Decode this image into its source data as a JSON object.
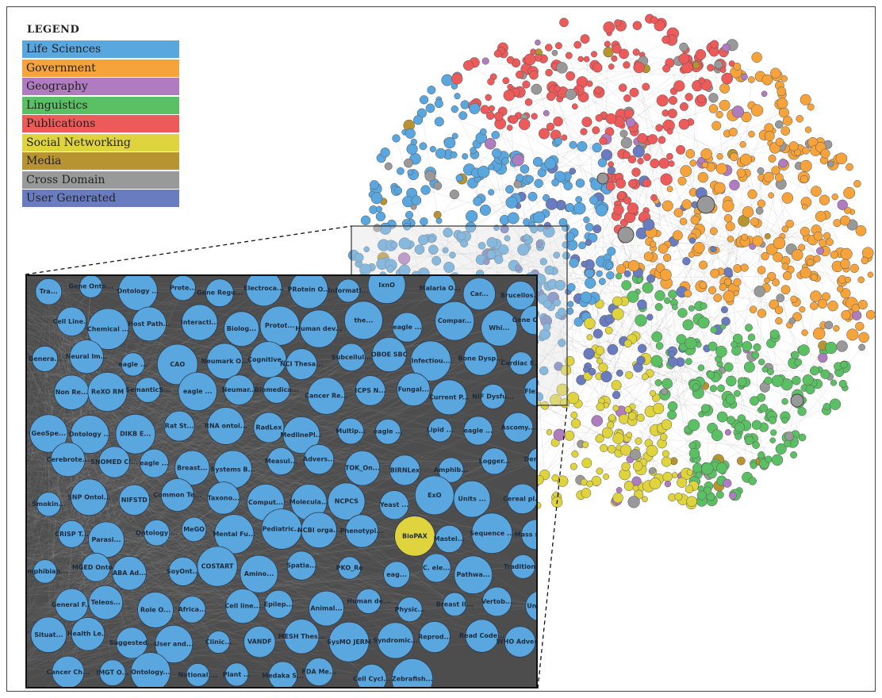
{
  "legend": {
    "title": "LEGEND",
    "items": [
      {
        "label": "Life Sciences",
        "color": "#5aa6df"
      },
      {
        "label": "Government",
        "color": "#f5a33a"
      },
      {
        "label": "Geography",
        "color": "#b07cc0"
      },
      {
        "label": "Linguistics",
        "color": "#5bbf63"
      },
      {
        "label": "Publications",
        "color": "#ec5a5a"
      },
      {
        "label": "Social Networking",
        "color": "#dfd43e"
      },
      {
        "label": "Media",
        "color": "#b89431"
      },
      {
        "label": "Cross Domain",
        "color": "#999999"
      },
      {
        "label": "User Generated",
        "color": "#6a7cc0"
      }
    ]
  },
  "zoom_nodes": [
    {
      "label": "Tra...",
      "category": "Life Sciences"
    },
    {
      "label": "Gene Onto...",
      "category": "Life Sciences"
    },
    {
      "label": "Ontology ...",
      "category": "Life Sciences"
    },
    {
      "label": "Prote...",
      "category": "Life Sciences"
    },
    {
      "label": "Gene Regu...",
      "category": "Life Sciences"
    },
    {
      "label": "Electroca...",
      "category": "Life Sciences"
    },
    {
      "label": "PRotein O...",
      "category": "Life Sciences"
    },
    {
      "label": "Informati...",
      "category": "Life Sciences"
    },
    {
      "label": "IxnO",
      "category": "Life Sciences"
    },
    {
      "label": "Malaria O...",
      "category": "Life Sciences"
    },
    {
      "label": "Car...",
      "category": "Life Sciences"
    },
    {
      "label": "Brucellos...",
      "category": "Life Sciences"
    },
    {
      "label": "Cell Line...",
      "category": "Life Sciences"
    },
    {
      "label": "Chemical ...",
      "category": "Life Sciences"
    },
    {
      "label": "Host Path...",
      "category": "Life Sciences"
    },
    {
      "label": "Interacti...",
      "category": "Life Sciences"
    },
    {
      "label": "Biolog...",
      "category": "Life Sciences"
    },
    {
      "label": "Protot...",
      "category": "Life Sciences"
    },
    {
      "label": "Human dev...",
      "category": "Life Sciences"
    },
    {
      "label": "the...",
      "category": "Life Sciences"
    },
    {
      "label": "eagle ...",
      "category": "Life Sciences"
    },
    {
      "label": "Compar...",
      "category": "Life Sciences"
    },
    {
      "label": "Whi...",
      "category": "Life Sciences"
    },
    {
      "label": "Gene Onto...",
      "category": "Life Sciences"
    },
    {
      "label": "Genera...",
      "category": "Life Sciences"
    },
    {
      "label": "Neural Im...",
      "category": "Life Sciences"
    },
    {
      "label": "eagle ...",
      "category": "Life Sciences"
    },
    {
      "label": "CAO",
      "category": "Life Sciences"
    },
    {
      "label": "Neumark O...",
      "category": "Life Sciences"
    },
    {
      "label": "Cognitive...",
      "category": "Life Sciences"
    },
    {
      "label": "NCI Thesa...",
      "category": "Life Sciences"
    },
    {
      "label": "Subcellul...",
      "category": "Life Sciences"
    },
    {
      "label": "OBOE SBC",
      "category": "Life Sciences"
    },
    {
      "label": "Infectiou...",
      "category": "Life Sciences"
    },
    {
      "label": "Bone Dysp...",
      "category": "Life Sciences"
    },
    {
      "label": "Cardiac E...",
      "category": "Life Sciences"
    },
    {
      "label": "Non Re...",
      "category": "Life Sciences"
    },
    {
      "label": "ReXO RM",
      "category": "Life Sciences"
    },
    {
      "label": "SemanticS...",
      "category": "Life Sciences"
    },
    {
      "label": "eagle ...",
      "category": "Life Sciences"
    },
    {
      "label": "Neumar...",
      "category": "Life Sciences"
    },
    {
      "label": "Biomedica...",
      "category": "Life Sciences"
    },
    {
      "label": "Cancer Re...",
      "category": "Life Sciences"
    },
    {
      "label": "ICPS N...",
      "category": "Life Sciences"
    },
    {
      "label": "Fungal...",
      "category": "Life Sciences"
    },
    {
      "label": "Current P...",
      "category": "Life Sciences"
    },
    {
      "label": "NIF Dysfu...",
      "category": "Life Sciences"
    },
    {
      "label": "Flexib...",
      "category": "Life Sciences"
    },
    {
      "label": "GeoSpe...",
      "category": "Life Sciences"
    },
    {
      "label": "Ontology ...",
      "category": "Life Sciences"
    },
    {
      "label": "DIKB E...",
      "category": "Life Sciences"
    },
    {
      "label": "Rat St...",
      "category": "Life Sciences"
    },
    {
      "label": "RNA ontol...",
      "category": "Life Sciences"
    },
    {
      "label": "RadLex",
      "category": "Life Sciences"
    },
    {
      "label": "MedlinePl...",
      "category": "Life Sciences"
    },
    {
      "label": "Multip...",
      "category": "Life Sciences"
    },
    {
      "label": "eagle ...",
      "category": "Life Sciences"
    },
    {
      "label": "Lipid ...",
      "category": "Life Sciences"
    },
    {
      "label": "eagle ...",
      "category": "Life Sciences"
    },
    {
      "label": "Ascomy...",
      "category": "Life Sciences"
    },
    {
      "label": "Cerebrote...",
      "category": "Life Sciences"
    },
    {
      "label": "SNOMED Cl...",
      "category": "Life Sciences"
    },
    {
      "label": "eagle ...",
      "category": "Life Sciences"
    },
    {
      "label": "Breast...",
      "category": "Life Sciences"
    },
    {
      "label": "Systems B...",
      "category": "Life Sciences"
    },
    {
      "label": "Measul...",
      "category": "Life Sciences"
    },
    {
      "label": "Advers...",
      "category": "Life Sciences"
    },
    {
      "label": "TOK_On...",
      "category": "Life Sciences"
    },
    {
      "label": "BIRNLex",
      "category": "Life Sciences"
    },
    {
      "label": "Amphib...",
      "category": "Life Sciences"
    },
    {
      "label": "Logger...",
      "category": "Life Sciences"
    },
    {
      "label": "Dendri...",
      "category": "Life Sciences"
    },
    {
      "label": "Smokin...",
      "category": "Life Sciences"
    },
    {
      "label": "SNP Ontol...",
      "category": "Life Sciences"
    },
    {
      "label": "NIFSTD",
      "category": "Life Sciences"
    },
    {
      "label": "Common Te...",
      "category": "Life Sciences"
    },
    {
      "label": "Taxono...",
      "category": "Life Sciences"
    },
    {
      "label": "Comput...",
      "category": "Life Sciences"
    },
    {
      "label": "Molecula...",
      "category": "Life Sciences"
    },
    {
      "label": "NCPCS",
      "category": "Life Sciences"
    },
    {
      "label": "Yeast ...",
      "category": "Life Sciences"
    },
    {
      "label": "ExO",
      "category": "Life Sciences"
    },
    {
      "label": "Units ...",
      "category": "Life Sciences"
    },
    {
      "label": "Cereal pl...",
      "category": "Life Sciences"
    },
    {
      "label": "CRISP T...",
      "category": "Life Sciences"
    },
    {
      "label": "Parasi...",
      "category": "Life Sciences"
    },
    {
      "label": "Ontology ...",
      "category": "Life Sciences"
    },
    {
      "label": "MeGO",
      "category": "Life Sciences"
    },
    {
      "label": "Mental Fu...",
      "category": "Life Sciences"
    },
    {
      "label": "Pediatric...",
      "category": "Life Sciences"
    },
    {
      "label": "NCBI orga...",
      "category": "Life Sciences"
    },
    {
      "label": "Phenotypi...",
      "category": "Life Sciences"
    },
    {
      "label": "BioPAX",
      "category": "Social Networking"
    },
    {
      "label": "Mastei...",
      "category": "Life Sciences"
    },
    {
      "label": "Sequence ...",
      "category": "Life Sciences"
    },
    {
      "label": "Mass spec...",
      "category": "Life Sciences"
    },
    {
      "label": "Amphibian...",
      "category": "Life Sciences"
    },
    {
      "label": "MGED Onto...",
      "category": "Life Sciences"
    },
    {
      "label": "ABA Ad...",
      "category": "Life Sciences"
    },
    {
      "label": "SoyOnt...",
      "category": "Life Sciences"
    },
    {
      "label": "COSTART",
      "category": "Life Sciences"
    },
    {
      "label": "Amino...",
      "category": "Life Sciences"
    },
    {
      "label": "Spatia...",
      "category": "Life Sciences"
    },
    {
      "label": "PKO_Re",
      "category": "Life Sciences"
    },
    {
      "label": "eag...",
      "category": "Life Sciences"
    },
    {
      "label": "C. ele...",
      "category": "Life Sciences"
    },
    {
      "label": "Pathwa...",
      "category": "Life Sciences"
    },
    {
      "label": "Tradition...",
      "category": "Life Sciences"
    },
    {
      "label": "General F...",
      "category": "Life Sciences"
    },
    {
      "label": "Teleos...",
      "category": "Life Sciences"
    },
    {
      "label": "Role O...",
      "category": "Life Sciences"
    },
    {
      "label": "Africa...",
      "category": "Life Sciences"
    },
    {
      "label": "Cell line...",
      "category": "Life Sciences"
    },
    {
      "label": "Epilep...",
      "category": "Life Sciences"
    },
    {
      "label": "Animal...",
      "category": "Life Sciences"
    },
    {
      "label": "Human de...",
      "category": "Life Sciences"
    },
    {
      "label": "Physic...",
      "category": "Life Sciences"
    },
    {
      "label": "Breast Il...",
      "category": "Life Sciences"
    },
    {
      "label": "Vertob...",
      "category": "Life Sciences"
    },
    {
      "label": "Units ...",
      "category": "Life Sciences"
    },
    {
      "label": "Situat...",
      "category": "Life Sciences"
    },
    {
      "label": "Health Le...",
      "category": "Life Sciences"
    },
    {
      "label": "Suggested...",
      "category": "Life Sciences"
    },
    {
      "label": "User and...",
      "category": "Life Sciences"
    },
    {
      "label": "Clinic...",
      "category": "Life Sciences"
    },
    {
      "label": "VANDF",
      "category": "Life Sciences"
    },
    {
      "label": "MESH Thes...",
      "category": "Life Sciences"
    },
    {
      "label": "SysMO JERM",
      "category": "Life Sciences"
    },
    {
      "label": "Syndromic...",
      "category": "Life Sciences"
    },
    {
      "label": "Reprod...",
      "category": "Life Sciences"
    },
    {
      "label": "Read Code...",
      "category": "Life Sciences"
    },
    {
      "label": "WHO Adver...",
      "category": "Life Sciences"
    },
    {
      "label": "Cancer Ch...",
      "category": "Life Sciences"
    },
    {
      "label": "IMGT O...",
      "category": "Life Sciences"
    },
    {
      "label": "Ontology...",
      "category": "Life Sciences"
    },
    {
      "label": "National ...",
      "category": "Life Sciences"
    },
    {
      "label": "Plant ...",
      "category": "Life Sciences"
    },
    {
      "label": "Medaka S...",
      "category": "Life Sciences"
    },
    {
      "label": "FDA Me...",
      "category": "Life Sciences"
    },
    {
      "label": "Cell Cycl...",
      "category": "Life Sciences"
    },
    {
      "label": "Zebrafish...",
      "category": "Life Sciences"
    }
  ]
}
